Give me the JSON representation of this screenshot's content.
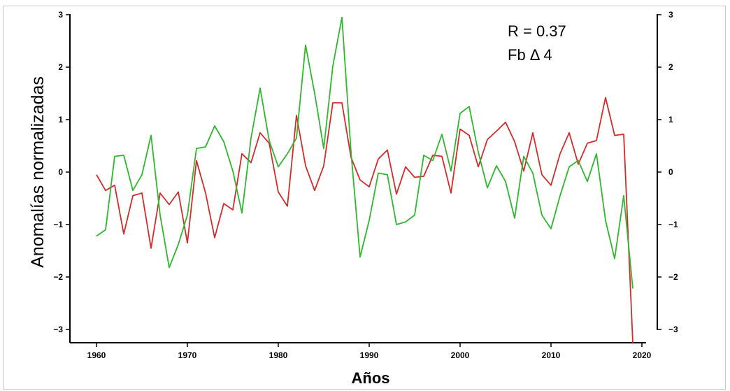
{
  "chart_data": {
    "type": "line",
    "xlabel": "Años",
    "ylabel": "Anomalías normalizadas",
    "xlim": [
      1957,
      2021
    ],
    "ylim": [
      -3.25,
      3.25
    ],
    "x_ticks": [
      1960,
      1970,
      1980,
      1990,
      2000,
      2010,
      2020
    ],
    "y_ticks": [
      -3,
      -2,
      -1,
      0,
      1,
      2,
      3
    ],
    "right_axis": true,
    "annotations": [
      "R =  0.37",
      "Fb Δ 4"
    ],
    "x": [
      1960,
      1961,
      1962,
      1963,
      1964,
      1965,
      1966,
      1967,
      1968,
      1969,
      1970,
      1971,
      1972,
      1973,
      1974,
      1975,
      1976,
      1977,
      1978,
      1979,
      1980,
      1981,
      1982,
      1983,
      1984,
      1985,
      1986,
      1987,
      1988,
      1989,
      1990,
      1991,
      1992,
      1993,
      1994,
      1995,
      1996,
      1997,
      1998,
      1999,
      2000,
      2001,
      2002,
      2003,
      2004,
      2005,
      2006,
      2007,
      2008,
      2009,
      2010,
      2011,
      2012,
      2013,
      2014,
      2015,
      2016,
      2017,
      2018,
      2019
    ],
    "series": [
      {
        "color": "#d42a2a",
        "values": [
          -0.05,
          -0.35,
          -0.25,
          -1.18,
          -0.45,
          -0.4,
          -1.45,
          -0.4,
          -0.62,
          -0.38,
          -1.35,
          0.22,
          -0.4,
          -1.25,
          -0.6,
          -0.72,
          0.35,
          0.18,
          0.75,
          0.55,
          -0.38,
          -0.65,
          1.08,
          0.12,
          -0.35,
          0.12,
          1.32,
          1.32,
          0.28,
          -0.15,
          -0.28,
          0.25,
          0.42,
          -0.42,
          0.1,
          -0.1,
          -0.08,
          0.32,
          0.3,
          -0.4,
          0.82,
          0.7,
          0.1,
          0.62,
          0.78,
          0.95,
          0.58,
          0.02,
          0.75,
          -0.05,
          -0.25,
          0.35,
          0.75,
          0.15,
          0.55,
          0.6,
          1.42,
          0.7,
          0.72,
          -3.25
        ]
      },
      {
        "color": "#2db82d",
        "values": [
          -1.22,
          -1.1,
          0.3,
          0.32,
          -0.35,
          -0.05,
          0.7,
          -0.82,
          -1.82,
          -1.38,
          -0.82,
          0.45,
          0.48,
          0.88,
          0.58,
          0.02,
          -0.78,
          0.65,
          1.6,
          0.6,
          0.1,
          0.35,
          0.65,
          2.42,
          1.5,
          0.45,
          2.02,
          2.95,
          0.38,
          -1.62,
          -0.92,
          -0.02,
          -0.05,
          -1.0,
          -0.95,
          -0.82,
          0.32,
          0.22,
          0.72,
          0.02,
          1.12,
          1.25,
          0.38,
          -0.3,
          0.12,
          -0.18,
          -0.88,
          0.3,
          -0.02,
          -0.82,
          -1.08,
          -0.45,
          0.1,
          0.22,
          -0.18,
          0.35,
          -0.92,
          -1.65,
          -0.45,
          -2.22
        ]
      }
    ]
  }
}
